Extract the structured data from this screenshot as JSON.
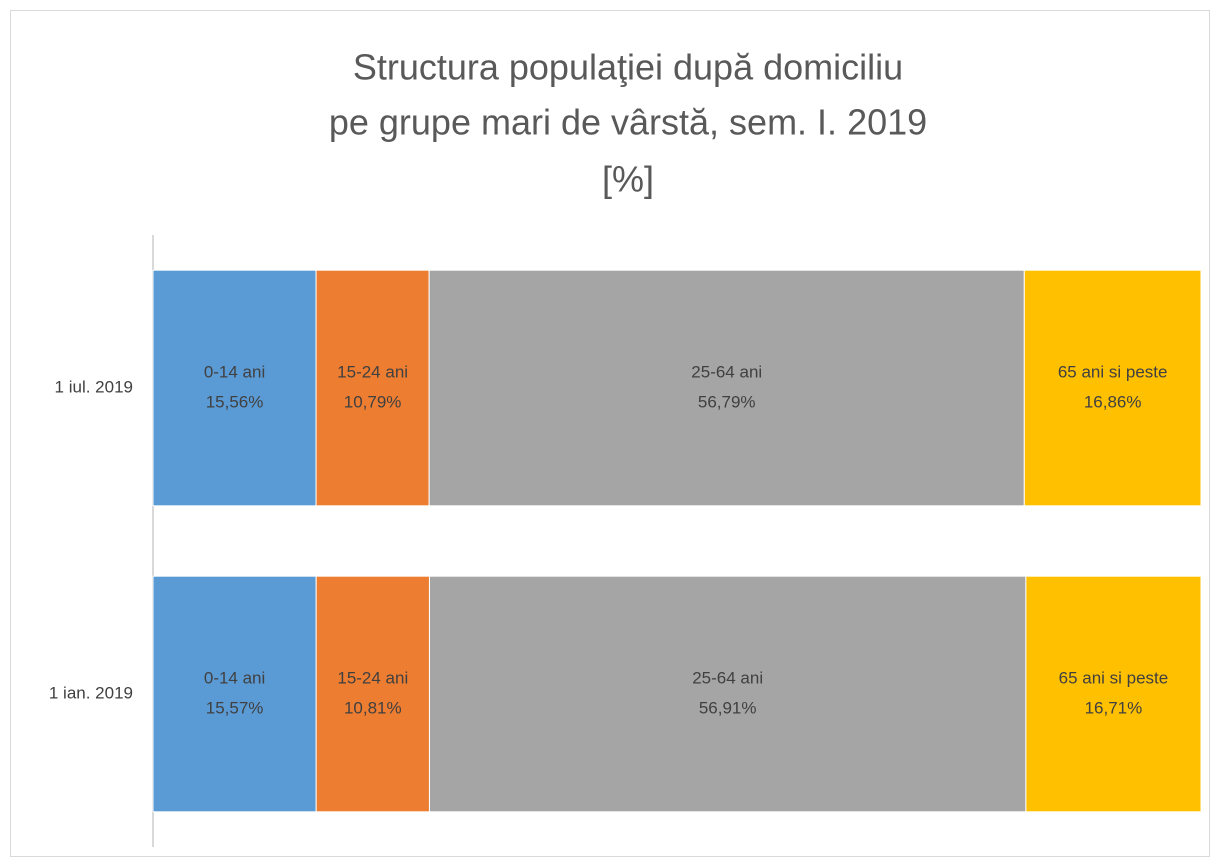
{
  "chart_data": {
    "type": "stacked_bar_horizontal",
    "title": [
      "Structura populaţiei după domiciliu",
      "pe grupe mari de vârstă, sem. I. 2019",
      "[%]"
    ],
    "categories": [
      "1 iul. 2019",
      "1 ian. 2019"
    ],
    "series": [
      {
        "name": "0-14 ani",
        "color": "#5b9bd5",
        "values": [
          15.56,
          15.57
        ],
        "value_labels": [
          "15,56%",
          "15,57%"
        ]
      },
      {
        "name": "15-24 ani",
        "color": "#ed7d31",
        "values": [
          10.79,
          10.81
        ],
        "value_labels": [
          "10,79%",
          "10,81%"
        ]
      },
      {
        "name": "25-64 ani",
        "color": "#a5a5a5",
        "values": [
          56.79,
          56.91
        ],
        "value_labels": [
          "56,79%",
          "56,91%"
        ]
      },
      {
        "name": "65 ani si peste",
        "color": "#ffc000",
        "values": [
          16.86,
          16.71
        ],
        "value_labels": [
          "16,86%",
          "16,71%"
        ]
      }
    ]
  }
}
